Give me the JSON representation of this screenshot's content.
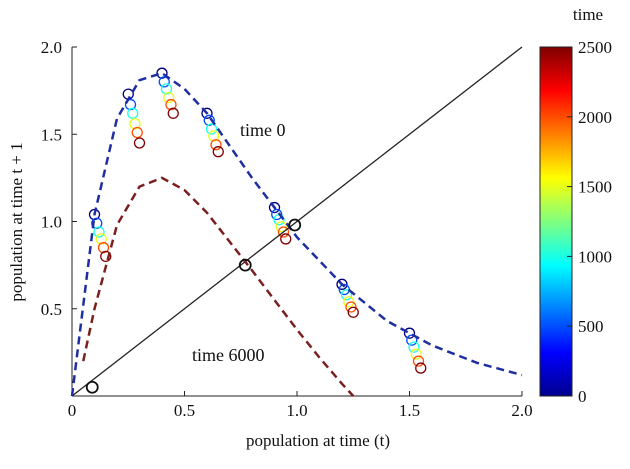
{
  "chart_data": {
    "type": "scatter",
    "xlabel": "population at time (t)",
    "ylabel": "population at time t + 1",
    "xlim": [
      0,
      2
    ],
    "ylim": [
      0,
      2
    ],
    "xticks": [
      0,
      0.5,
      {
        "value": 1,
        "label": "1.0"
      },
      1.5,
      {
        "value": 2,
        "label": "2.0"
      }
    ],
    "yticks": [
      0.5,
      {
        "value": 1,
        "label": "1.0"
      },
      1.5,
      {
        "value": 2,
        "label": "2.0"
      }
    ],
    "colormap": "jet",
    "colorbar": {
      "title": "time",
      "lim": [
        0,
        2500
      ],
      "ticks": [
        0,
        500,
        1000,
        1500,
        2000,
        2500
      ]
    },
    "points": {
      "x": [
        0.1,
        0.11,
        0.12,
        0.13,
        0.14,
        0.15,
        0.25,
        0.26,
        0.27,
        0.28,
        0.29,
        0.3,
        0.4,
        0.41,
        0.42,
        0.43,
        0.44,
        0.45,
        0.6,
        0.61,
        0.62,
        0.63,
        0.64,
        0.65,
        0.9,
        0.91,
        0.92,
        0.93,
        0.94,
        0.95,
        1.2,
        1.21,
        1.22,
        1.23,
        1.24,
        1.25,
        1.5,
        1.51,
        1.52,
        1.53,
        1.54,
        1.55
      ],
      "y": [
        1.04,
        0.99,
        0.94,
        0.9,
        0.85,
        0.8,
        1.73,
        1.67,
        1.62,
        1.56,
        1.51,
        1.45,
        1.85,
        1.8,
        1.76,
        1.71,
        1.67,
        1.62,
        1.62,
        1.58,
        1.53,
        1.49,
        1.44,
        1.4,
        1.08,
        1.04,
        1.01,
        0.97,
        0.94,
        0.9,
        0.64,
        0.61,
        0.58,
        0.54,
        0.51,
        0.48,
        0.36,
        0.32,
        0.28,
        0.24,
        0.2,
        0.16
      ],
      "time": [
        0,
        500,
        1000,
        1500,
        2000,
        2500,
        0,
        500,
        1000,
        1500,
        2000,
        2500,
        0,
        500,
        1000,
        1500,
        2000,
        2500,
        0,
        500,
        1000,
        1500,
        2000,
        2500,
        0,
        500,
        1000,
        1500,
        2000,
        2500,
        0,
        500,
        1000,
        1500,
        2000,
        2500,
        0,
        500,
        1000,
        1500,
        2000,
        2500
      ]
    },
    "curves": [
      {
        "label": "time 0",
        "color": "#1f2ea0",
        "x": [
          0,
          0.1,
          0.2,
          0.3,
          0.4,
          0.5,
          0.6,
          0.8,
          1.0,
          1.2,
          1.4,
          1.6,
          1.8,
          2.0
        ],
        "values": [
          0,
          1.04,
          1.59,
          1.81,
          1.85,
          1.76,
          1.62,
          1.25,
          0.91,
          0.64,
          0.43,
          0.29,
          0.19,
          0.12
        ]
      },
      {
        "label": "time 6000",
        "color": "#7a2020",
        "x": [
          0.05,
          0.1,
          0.2,
          0.3,
          0.4,
          0.5,
          0.6,
          0.8,
          1.0,
          1.1,
          1.2,
          1.25
        ],
        "values": [
          0.2,
          0.5,
          0.98,
          1.2,
          1.25,
          1.18,
          1.05,
          0.72,
          0.38,
          0.22,
          0.07,
          0
        ]
      }
    ],
    "identity_line": {
      "x": [
        0,
        2
      ],
      "values": [
        0,
        2
      ]
    },
    "fixed_points": {
      "x": [
        0.09,
        0.77,
        0.99
      ],
      "values": [
        0.05,
        0.75,
        0.98
      ]
    }
  }
}
